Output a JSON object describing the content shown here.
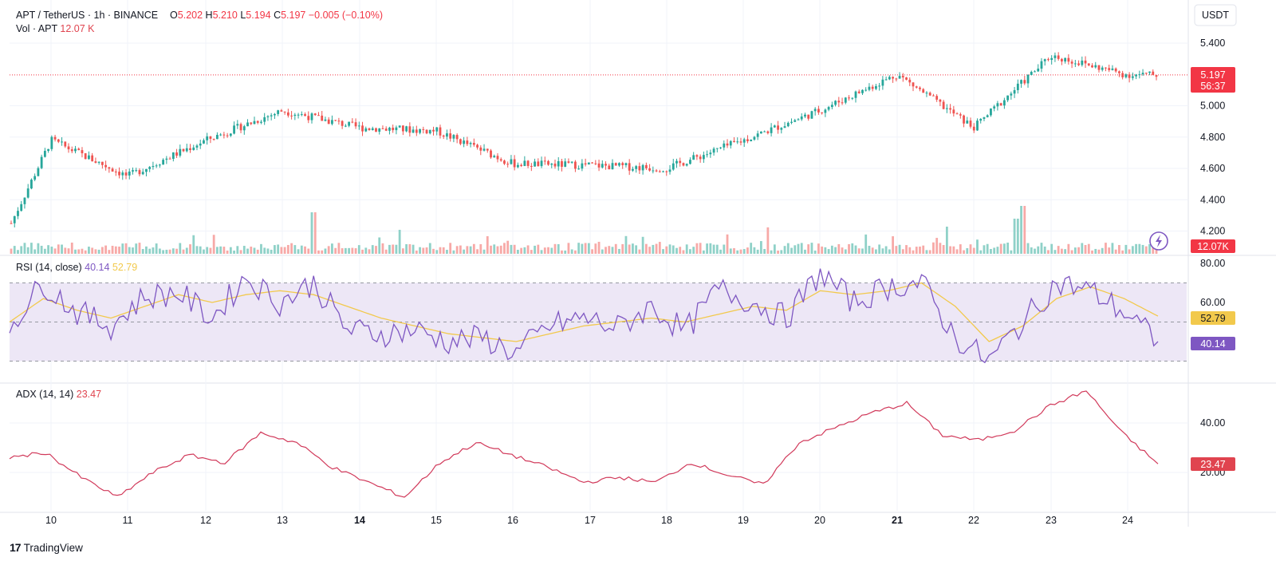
{
  "header": {
    "symbol": "APT / TetherUS · 1h · BINANCE",
    "o_label": "O",
    "o_value": "5.202",
    "h_label": "H",
    "h_value": "5.210",
    "l_label": "L",
    "l_value": "5.194",
    "c_label": "C",
    "c_value": "5.197",
    "change": "−0.005 (−0.10%)",
    "vol_label": "Vol · APT",
    "vol_value": "12.07 K"
  },
  "currency": "USDT",
  "price_axis": {
    "ticks": [
      "5.400",
      "5.000",
      "4.800",
      "4.600",
      "4.400",
      "4.200"
    ],
    "tick_values": [
      5.4,
      5.0,
      4.8,
      4.6,
      4.4,
      4.2
    ],
    "price_tag": "5.197",
    "countdown": "56:37",
    "vol_tag": "12.07K"
  },
  "rsi": {
    "label": "RSI (14, close)",
    "value": "40.14",
    "ma_value": "52.79",
    "ticks": [
      "80.00",
      "60.00"
    ],
    "tick_values": [
      80,
      60
    ],
    "upper_band": 70,
    "lower_band": 30
  },
  "adx": {
    "label": "ADX (14, 14)",
    "value": "23.47",
    "ticks": [
      "40.00",
      "20.00"
    ],
    "tick_values": [
      40,
      20
    ]
  },
  "time_axis": {
    "labels": [
      "10",
      "11",
      "12",
      "13",
      "14",
      "15",
      "16",
      "17",
      "18",
      "19",
      "20",
      "21",
      "22",
      "23",
      "24"
    ],
    "bold_labels": [
      "14",
      "21"
    ]
  },
  "branding": {
    "name": "TradingView"
  },
  "colors": {
    "up": "#26a69a",
    "down": "#ef5350",
    "rsi_line": "#7e57c2",
    "rsi_ma": "#f2c94c",
    "adx_line": "#d1395a",
    "band_fill": "#ede7f6"
  },
  "icons": [
    "lightning-icon",
    "tradingview-logo-icon"
  ],
  "chart_data": [
    {
      "type": "candlestick",
      "title": "APT / TetherUS · 1h · BINANCE",
      "x": [
        "10",
        "11",
        "12",
        "13",
        "14",
        "15",
        "16",
        "17",
        "18",
        "19",
        "20",
        "21",
        "22",
        "23",
        "24"
      ],
      "close": [
        4.78,
        4.55,
        4.78,
        4.97,
        4.86,
        4.84,
        4.63,
        4.62,
        4.6,
        4.78,
        4.97,
        5.2,
        4.86,
        5.32,
        5.197
      ],
      "ylim": [
        4.15,
        5.48
      ],
      "last": 5.197
    },
    {
      "type": "bar",
      "title": "Vol · APT",
      "last": 12.07,
      "unit": "K"
    },
    {
      "type": "line",
      "title": "RSI (14, close)",
      "ylim": [
        24,
        82
      ],
      "series": [
        {
          "name": "RSI",
          "values": [
            48,
            70,
            55,
            48,
            63,
            65,
            52,
            73,
            60,
            70,
            46,
            44,
            46,
            40,
            42,
            34,
            48,
            52,
            47,
            58,
            45,
            67,
            60,
            52,
            75,
            60,
            68,
            70,
            42,
            30,
            50,
            70,
            66,
            55,
            40
          ]
        },
        {
          "name": "MA",
          "values": [
            50,
            62,
            56,
            52,
            58,
            64,
            60,
            64,
            66,
            64,
            58,
            52,
            48,
            44,
            42,
            40,
            44,
            48,
            50,
            52,
            50,
            54,
            58,
            56,
            66,
            64,
            66,
            70,
            58,
            40,
            48,
            62,
            68,
            62,
            53
          ]
        }
      ]
    },
    {
      "type": "line",
      "title": "ADX (14, 14)",
      "ylim": [
        9,
        55
      ],
      "series": [
        {
          "name": "ADX",
          "values": [
            26,
            28,
            18,
            10,
            20,
            27,
            24,
            36,
            32,
            22,
            16,
            10,
            24,
            32,
            27,
            22,
            16,
            18,
            16,
            24,
            19,
            15,
            32,
            38,
            44,
            48,
            35,
            33,
            37,
            47,
            53,
            36,
            23.47
          ]
        }
      ]
    }
  ]
}
